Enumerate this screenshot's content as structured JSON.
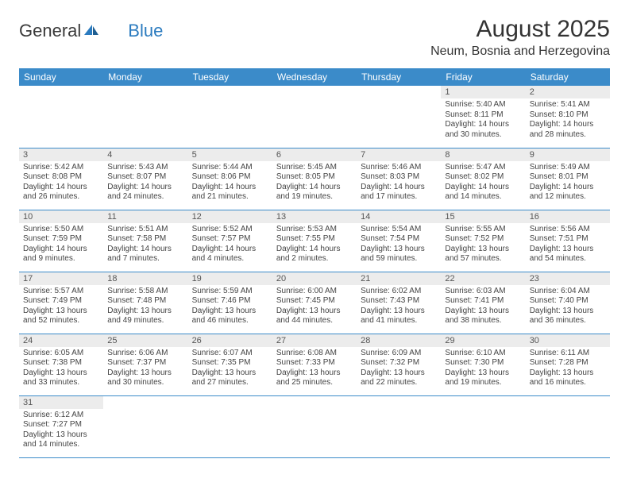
{
  "logo": {
    "part1": "General",
    "part2": "Blue"
  },
  "title": "August 2025",
  "location": "Neum, Bosnia and Herzegovina",
  "header_bg": "#3b8bc9",
  "daynum_bg": "#ececec",
  "dayHeaders": [
    "Sunday",
    "Monday",
    "Tuesday",
    "Wednesday",
    "Thursday",
    "Friday",
    "Saturday"
  ],
  "weeks": [
    [
      null,
      null,
      null,
      null,
      null,
      {
        "n": "1",
        "sunrise": "5:40 AM",
        "sunset": "8:11 PM",
        "daylight": "14 hours and 30 minutes."
      },
      {
        "n": "2",
        "sunrise": "5:41 AM",
        "sunset": "8:10 PM",
        "daylight": "14 hours and 28 minutes."
      }
    ],
    [
      {
        "n": "3",
        "sunrise": "5:42 AM",
        "sunset": "8:08 PM",
        "daylight": "14 hours and 26 minutes."
      },
      {
        "n": "4",
        "sunrise": "5:43 AM",
        "sunset": "8:07 PM",
        "daylight": "14 hours and 24 minutes."
      },
      {
        "n": "5",
        "sunrise": "5:44 AM",
        "sunset": "8:06 PM",
        "daylight": "14 hours and 21 minutes."
      },
      {
        "n": "6",
        "sunrise": "5:45 AM",
        "sunset": "8:05 PM",
        "daylight": "14 hours and 19 minutes."
      },
      {
        "n": "7",
        "sunrise": "5:46 AM",
        "sunset": "8:03 PM",
        "daylight": "14 hours and 17 minutes."
      },
      {
        "n": "8",
        "sunrise": "5:47 AM",
        "sunset": "8:02 PM",
        "daylight": "14 hours and 14 minutes."
      },
      {
        "n": "9",
        "sunrise": "5:49 AM",
        "sunset": "8:01 PM",
        "daylight": "14 hours and 12 minutes."
      }
    ],
    [
      {
        "n": "10",
        "sunrise": "5:50 AM",
        "sunset": "7:59 PM",
        "daylight": "14 hours and 9 minutes."
      },
      {
        "n": "11",
        "sunrise": "5:51 AM",
        "sunset": "7:58 PM",
        "daylight": "14 hours and 7 minutes."
      },
      {
        "n": "12",
        "sunrise": "5:52 AM",
        "sunset": "7:57 PM",
        "daylight": "14 hours and 4 minutes."
      },
      {
        "n": "13",
        "sunrise": "5:53 AM",
        "sunset": "7:55 PM",
        "daylight": "14 hours and 2 minutes."
      },
      {
        "n": "14",
        "sunrise": "5:54 AM",
        "sunset": "7:54 PM",
        "daylight": "13 hours and 59 minutes."
      },
      {
        "n": "15",
        "sunrise": "5:55 AM",
        "sunset": "7:52 PM",
        "daylight": "13 hours and 57 minutes."
      },
      {
        "n": "16",
        "sunrise": "5:56 AM",
        "sunset": "7:51 PM",
        "daylight": "13 hours and 54 minutes."
      }
    ],
    [
      {
        "n": "17",
        "sunrise": "5:57 AM",
        "sunset": "7:49 PM",
        "daylight": "13 hours and 52 minutes."
      },
      {
        "n": "18",
        "sunrise": "5:58 AM",
        "sunset": "7:48 PM",
        "daylight": "13 hours and 49 minutes."
      },
      {
        "n": "19",
        "sunrise": "5:59 AM",
        "sunset": "7:46 PM",
        "daylight": "13 hours and 46 minutes."
      },
      {
        "n": "20",
        "sunrise": "6:00 AM",
        "sunset": "7:45 PM",
        "daylight": "13 hours and 44 minutes."
      },
      {
        "n": "21",
        "sunrise": "6:02 AM",
        "sunset": "7:43 PM",
        "daylight": "13 hours and 41 minutes."
      },
      {
        "n": "22",
        "sunrise": "6:03 AM",
        "sunset": "7:41 PM",
        "daylight": "13 hours and 38 minutes."
      },
      {
        "n": "23",
        "sunrise": "6:04 AM",
        "sunset": "7:40 PM",
        "daylight": "13 hours and 36 minutes."
      }
    ],
    [
      {
        "n": "24",
        "sunrise": "6:05 AM",
        "sunset": "7:38 PM",
        "daylight": "13 hours and 33 minutes."
      },
      {
        "n": "25",
        "sunrise": "6:06 AM",
        "sunset": "7:37 PM",
        "daylight": "13 hours and 30 minutes."
      },
      {
        "n": "26",
        "sunrise": "6:07 AM",
        "sunset": "7:35 PM",
        "daylight": "13 hours and 27 minutes."
      },
      {
        "n": "27",
        "sunrise": "6:08 AM",
        "sunset": "7:33 PM",
        "daylight": "13 hours and 25 minutes."
      },
      {
        "n": "28",
        "sunrise": "6:09 AM",
        "sunset": "7:32 PM",
        "daylight": "13 hours and 22 minutes."
      },
      {
        "n": "29",
        "sunrise": "6:10 AM",
        "sunset": "7:30 PM",
        "daylight": "13 hours and 19 minutes."
      },
      {
        "n": "30",
        "sunrise": "6:11 AM",
        "sunset": "7:28 PM",
        "daylight": "13 hours and 16 minutes."
      }
    ],
    [
      {
        "n": "31",
        "sunrise": "6:12 AM",
        "sunset": "7:27 PM",
        "daylight": "13 hours and 14 minutes."
      },
      null,
      null,
      null,
      null,
      null,
      null
    ]
  ],
  "labels": {
    "sunrise": "Sunrise:",
    "sunset": "Sunset:",
    "daylight": "Daylight:"
  }
}
